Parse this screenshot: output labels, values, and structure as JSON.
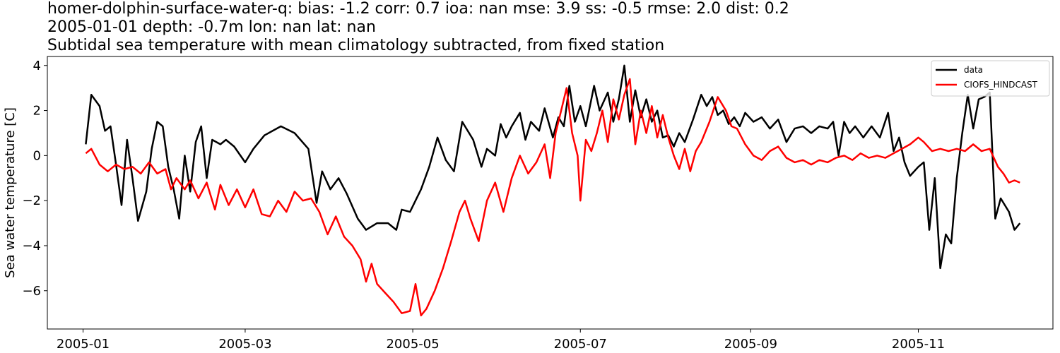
{
  "chart_data": {
    "type": "line",
    "title_lines": [
      "homer-dolphin-surface-water-q: bias: -1.2  corr: 0.7  ioa: nan  mse: 3.9  ss: -0.5  rmse: 2.0  dist: 0.2",
      "2005-01-01 depth: -0.7m lon: nan lat: nan",
      "Subtidal sea temperature with mean climatology subtracted, from fixed station"
    ],
    "xlabel": "",
    "ylabel": "Sea water temperature [C]",
    "xlim": [
      "2004-12-19",
      "2005-12-20"
    ],
    "ylim": [
      -7.7,
      4.4
    ],
    "xticks": [
      "2005-01",
      "2005-03",
      "2005-05",
      "2005-07",
      "2005-09",
      "2005-11"
    ],
    "yticks": [
      4,
      2,
      0,
      -2,
      -4,
      -6
    ],
    "ytick_labels": [
      "4",
      "2",
      "0",
      "−2",
      "−4",
      "−6"
    ],
    "grid": false,
    "legend": "top-right",
    "series": [
      {
        "name": "data",
        "color": "#000000",
        "points": [
          [
            "2005-01-02",
            0.5
          ],
          [
            "2005-01-04",
            2.7
          ],
          [
            "2005-01-07",
            2.2
          ],
          [
            "2005-01-09",
            1.1
          ],
          [
            "2005-01-11",
            1.3
          ],
          [
            "2005-01-13",
            -0.4
          ],
          [
            "2005-01-15",
            -2.2
          ],
          [
            "2005-01-17",
            0.7
          ],
          [
            "2005-01-19",
            -1.0
          ],
          [
            "2005-01-21",
            -2.9
          ],
          [
            "2005-01-24",
            -1.6
          ],
          [
            "2005-01-26",
            0.3
          ],
          [
            "2005-01-28",
            1.5
          ],
          [
            "2005-01-30",
            1.3
          ],
          [
            "2005-02-01",
            -0.5
          ],
          [
            "2005-02-03",
            -1.5
          ],
          [
            "2005-02-05",
            -2.8
          ],
          [
            "2005-02-07",
            0.0
          ],
          [
            "2005-02-09",
            -1.6
          ],
          [
            "2005-02-11",
            0.6
          ],
          [
            "2005-02-13",
            1.3
          ],
          [
            "2005-02-15",
            -1.0
          ],
          [
            "2005-02-17",
            0.7
          ],
          [
            "2005-02-20",
            0.5
          ],
          [
            "2005-02-22",
            0.7
          ],
          [
            "2005-02-25",
            0.4
          ],
          [
            "2005-03-01",
            -0.3
          ],
          [
            "2005-03-04",
            0.3
          ],
          [
            "2005-03-08",
            0.9
          ],
          [
            "2005-03-14",
            1.3
          ],
          [
            "2005-03-19",
            1.0
          ],
          [
            "2005-03-24",
            0.3
          ],
          [
            "2005-03-27",
            -2.1
          ],
          [
            "2005-03-29",
            -0.7
          ],
          [
            "2005-04-01",
            -1.5
          ],
          [
            "2005-04-04",
            -1.0
          ],
          [
            "2005-04-07",
            -1.7
          ],
          [
            "2005-04-11",
            -2.8
          ],
          [
            "2005-04-14",
            -3.3
          ],
          [
            "2005-04-18",
            -3.0
          ],
          [
            "2005-04-22",
            -3.0
          ],
          [
            "2005-04-25",
            -3.3
          ],
          [
            "2005-04-27",
            -2.4
          ],
          [
            "2005-04-30",
            -2.5
          ],
          [
            "2005-05-04",
            -1.5
          ],
          [
            "2005-05-07",
            -0.5
          ],
          [
            "2005-05-10",
            0.8
          ],
          [
            "2005-05-13",
            -0.2
          ],
          [
            "2005-05-16",
            -0.7
          ],
          [
            "2005-05-19",
            1.5
          ],
          [
            "2005-05-23",
            0.7
          ],
          [
            "2005-05-26",
            -0.5
          ],
          [
            "2005-05-28",
            0.3
          ],
          [
            "2005-05-31",
            0.0
          ],
          [
            "2005-06-02",
            1.4
          ],
          [
            "2005-06-04",
            0.8
          ],
          [
            "2005-06-06",
            1.3
          ],
          [
            "2005-06-09",
            1.9
          ],
          [
            "2005-06-11",
            0.7
          ],
          [
            "2005-06-13",
            1.5
          ],
          [
            "2005-06-16",
            1.1
          ],
          [
            "2005-06-18",
            2.1
          ],
          [
            "2005-06-21",
            0.8
          ],
          [
            "2005-06-23",
            1.7
          ],
          [
            "2005-06-25",
            1.3
          ],
          [
            "2005-06-27",
            3.1
          ],
          [
            "2005-06-29",
            1.5
          ],
          [
            "2005-07-01",
            2.2
          ],
          [
            "2005-07-03",
            1.3
          ],
          [
            "2005-07-06",
            3.1
          ],
          [
            "2005-07-08",
            2.0
          ],
          [
            "2005-07-11",
            2.8
          ],
          [
            "2005-07-13",
            1.5
          ],
          [
            "2005-07-15",
            2.5
          ],
          [
            "2005-07-17",
            4.0
          ],
          [
            "2005-07-19",
            1.5
          ],
          [
            "2005-07-21",
            2.9
          ],
          [
            "2005-07-23",
            1.7
          ],
          [
            "2005-07-25",
            2.5
          ],
          [
            "2005-07-27",
            1.5
          ],
          [
            "2005-07-29",
            2.0
          ],
          [
            "2005-07-31",
            0.8
          ],
          [
            "2005-08-02",
            0.9
          ],
          [
            "2005-08-04",
            0.4
          ],
          [
            "2005-08-06",
            1.0
          ],
          [
            "2005-08-08",
            0.6
          ],
          [
            "2005-08-11",
            1.6
          ],
          [
            "2005-08-14",
            2.7
          ],
          [
            "2005-08-16",
            2.2
          ],
          [
            "2005-08-18",
            2.6
          ],
          [
            "2005-08-20",
            1.8
          ],
          [
            "2005-08-22",
            2.0
          ],
          [
            "2005-08-24",
            1.4
          ],
          [
            "2005-08-26",
            1.7
          ],
          [
            "2005-08-28",
            1.3
          ],
          [
            "2005-08-30",
            1.9
          ],
          [
            "2005-09-02",
            1.5
          ],
          [
            "2005-09-05",
            1.7
          ],
          [
            "2005-09-08",
            1.2
          ],
          [
            "2005-09-11",
            1.6
          ],
          [
            "2005-09-14",
            0.6
          ],
          [
            "2005-09-17",
            1.2
          ],
          [
            "2005-09-20",
            1.3
          ],
          [
            "2005-09-23",
            1.0
          ],
          [
            "2005-09-26",
            1.3
          ],
          [
            "2005-09-29",
            1.2
          ],
          [
            "2005-10-01",
            1.5
          ],
          [
            "2005-10-03",
            0.0
          ],
          [
            "2005-10-05",
            1.5
          ],
          [
            "2005-10-07",
            1.0
          ],
          [
            "2005-10-09",
            1.3
          ],
          [
            "2005-10-12",
            0.8
          ],
          [
            "2005-10-15",
            1.3
          ],
          [
            "2005-10-18",
            0.8
          ],
          [
            "2005-10-21",
            1.9
          ],
          [
            "2005-10-23",
            0.2
          ],
          [
            "2005-10-25",
            0.8
          ],
          [
            "2005-10-27",
            -0.3
          ],
          [
            "2005-10-29",
            -0.9
          ],
          [
            "2005-11-01",
            -0.5
          ],
          [
            "2005-11-03",
            -0.3
          ],
          [
            "2005-11-05",
            -3.3
          ],
          [
            "2005-11-07",
            -1.0
          ],
          [
            "2005-11-09",
            -5.0
          ],
          [
            "2005-11-11",
            -3.5
          ],
          [
            "2005-11-13",
            -3.9
          ],
          [
            "2005-11-15",
            -1.0
          ],
          [
            "2005-11-17",
            1.0
          ],
          [
            "2005-11-19",
            2.7
          ],
          [
            "2005-11-21",
            1.2
          ],
          [
            "2005-11-23",
            2.5
          ],
          [
            "2005-11-25",
            2.6
          ],
          [
            "2005-11-27",
            2.8
          ],
          [
            "2005-11-29",
            -2.8
          ],
          [
            "2005-12-01",
            -1.9
          ],
          [
            "2005-12-04",
            -2.5
          ],
          [
            "2005-12-06",
            -3.3
          ],
          [
            "2005-12-08",
            -3.0
          ]
        ]
      },
      {
        "name": "CIOFS_HINDCAST",
        "color": "#ff0000",
        "points": [
          [
            "2005-01-02",
            0.1
          ],
          [
            "2005-01-04",
            0.3
          ],
          [
            "2005-01-07",
            -0.4
          ],
          [
            "2005-01-10",
            -0.7
          ],
          [
            "2005-01-13",
            -0.4
          ],
          [
            "2005-01-16",
            -0.6
          ],
          [
            "2005-01-19",
            -0.5
          ],
          [
            "2005-01-22",
            -0.8
          ],
          [
            "2005-01-25",
            -0.3
          ],
          [
            "2005-01-28",
            -0.8
          ],
          [
            "2005-01-31",
            -0.6
          ],
          [
            "2005-02-02",
            -1.5
          ],
          [
            "2005-02-04",
            -1.0
          ],
          [
            "2005-02-07",
            -1.5
          ],
          [
            "2005-02-09",
            -1.1
          ],
          [
            "2005-02-12",
            -1.9
          ],
          [
            "2005-02-15",
            -1.2
          ],
          [
            "2005-02-18",
            -2.4
          ],
          [
            "2005-02-20",
            -1.3
          ],
          [
            "2005-02-23",
            -2.2
          ],
          [
            "2005-02-26",
            -1.5
          ],
          [
            "2005-03-01",
            -2.3
          ],
          [
            "2005-03-04",
            -1.5
          ],
          [
            "2005-03-07",
            -2.6
          ],
          [
            "2005-03-10",
            -2.7
          ],
          [
            "2005-03-13",
            -2.0
          ],
          [
            "2005-03-16",
            -2.5
          ],
          [
            "2005-03-19",
            -1.6
          ],
          [
            "2005-03-22",
            -2.0
          ],
          [
            "2005-03-25",
            -1.9
          ],
          [
            "2005-03-28",
            -2.5
          ],
          [
            "2005-03-31",
            -3.5
          ],
          [
            "2005-04-03",
            -2.7
          ],
          [
            "2005-04-06",
            -3.6
          ],
          [
            "2005-04-09",
            -4.0
          ],
          [
            "2005-04-12",
            -4.6
          ],
          [
            "2005-04-14",
            -5.6
          ],
          [
            "2005-04-16",
            -4.8
          ],
          [
            "2005-04-18",
            -5.7
          ],
          [
            "2005-04-21",
            -6.1
          ],
          [
            "2005-04-24",
            -6.5
          ],
          [
            "2005-04-27",
            -7.0
          ],
          [
            "2005-04-30",
            -6.9
          ],
          [
            "2005-05-02",
            -5.7
          ],
          [
            "2005-05-04",
            -7.1
          ],
          [
            "2005-05-06",
            -6.8
          ],
          [
            "2005-05-09",
            -6.0
          ],
          [
            "2005-05-12",
            -5.0
          ],
          [
            "2005-05-15",
            -3.8
          ],
          [
            "2005-05-18",
            -2.5
          ],
          [
            "2005-05-20",
            -2.0
          ],
          [
            "2005-05-22",
            -2.8
          ],
          [
            "2005-05-25",
            -3.8
          ],
          [
            "2005-05-28",
            -2.0
          ],
          [
            "2005-05-31",
            -1.2
          ],
          [
            "2005-06-03",
            -2.5
          ],
          [
            "2005-06-06",
            -1.0
          ],
          [
            "2005-06-09",
            0.0
          ],
          [
            "2005-06-12",
            -0.8
          ],
          [
            "2005-06-15",
            -0.3
          ],
          [
            "2005-06-18",
            0.5
          ],
          [
            "2005-06-20",
            -1.0
          ],
          [
            "2005-06-22",
            1.0
          ],
          [
            "2005-06-24",
            2.0
          ],
          [
            "2005-06-26",
            3.0
          ],
          [
            "2005-06-28",
            1.0
          ],
          [
            "2005-06-30",
            0.0
          ],
          [
            "2005-07-01",
            -2.0
          ],
          [
            "2005-07-03",
            0.7
          ],
          [
            "2005-07-05",
            0.2
          ],
          [
            "2005-07-07",
            1.0
          ],
          [
            "2005-07-09",
            2.0
          ],
          [
            "2005-07-11",
            0.6
          ],
          [
            "2005-07-13",
            2.5
          ],
          [
            "2005-07-15",
            1.6
          ],
          [
            "2005-07-17",
            2.7
          ],
          [
            "2005-07-19",
            3.4
          ],
          [
            "2005-07-21",
            0.5
          ],
          [
            "2005-07-23",
            2.0
          ],
          [
            "2005-07-25",
            1.0
          ],
          [
            "2005-07-27",
            2.2
          ],
          [
            "2005-07-29",
            0.8
          ],
          [
            "2005-07-31",
            1.8
          ],
          [
            "2005-08-02",
            0.8
          ],
          [
            "2005-08-04",
            0.0
          ],
          [
            "2005-08-06",
            -0.6
          ],
          [
            "2005-08-08",
            0.3
          ],
          [
            "2005-08-10",
            -0.7
          ],
          [
            "2005-08-12",
            0.2
          ],
          [
            "2005-08-14",
            0.6
          ],
          [
            "2005-08-17",
            1.5
          ],
          [
            "2005-08-20",
            2.6
          ],
          [
            "2005-08-23",
            2.0
          ],
          [
            "2005-08-25",
            1.3
          ],
          [
            "2005-08-27",
            1.2
          ],
          [
            "2005-08-30",
            0.5
          ],
          [
            "2005-09-02",
            0.0
          ],
          [
            "2005-09-05",
            -0.2
          ],
          [
            "2005-09-08",
            0.2
          ],
          [
            "2005-09-11",
            0.4
          ],
          [
            "2005-09-14",
            -0.1
          ],
          [
            "2005-09-17",
            -0.3
          ],
          [
            "2005-09-20",
            -0.2
          ],
          [
            "2005-09-23",
            -0.4
          ],
          [
            "2005-09-26",
            -0.2
          ],
          [
            "2005-09-29",
            -0.3
          ],
          [
            "2005-10-02",
            -0.1
          ],
          [
            "2005-10-05",
            0.0
          ],
          [
            "2005-10-08",
            -0.2
          ],
          [
            "2005-10-11",
            0.1
          ],
          [
            "2005-10-14",
            -0.1
          ],
          [
            "2005-10-17",
            0.0
          ],
          [
            "2005-10-20",
            -0.1
          ],
          [
            "2005-10-23",
            0.1
          ],
          [
            "2005-10-26",
            0.3
          ],
          [
            "2005-10-29",
            0.5
          ],
          [
            "2005-11-01",
            0.8
          ],
          [
            "2005-11-03",
            0.6
          ],
          [
            "2005-11-06",
            0.2
          ],
          [
            "2005-11-09",
            0.3
          ],
          [
            "2005-11-12",
            0.2
          ],
          [
            "2005-11-15",
            0.3
          ],
          [
            "2005-11-18",
            0.2
          ],
          [
            "2005-11-21",
            0.5
          ],
          [
            "2005-11-24",
            0.2
          ],
          [
            "2005-11-27",
            0.3
          ],
          [
            "2005-11-30",
            -0.5
          ],
          [
            "2005-12-02",
            -0.8
          ],
          [
            "2005-12-04",
            -1.2
          ],
          [
            "2005-12-06",
            -1.1
          ],
          [
            "2005-12-08",
            -1.2
          ]
        ]
      }
    ]
  }
}
